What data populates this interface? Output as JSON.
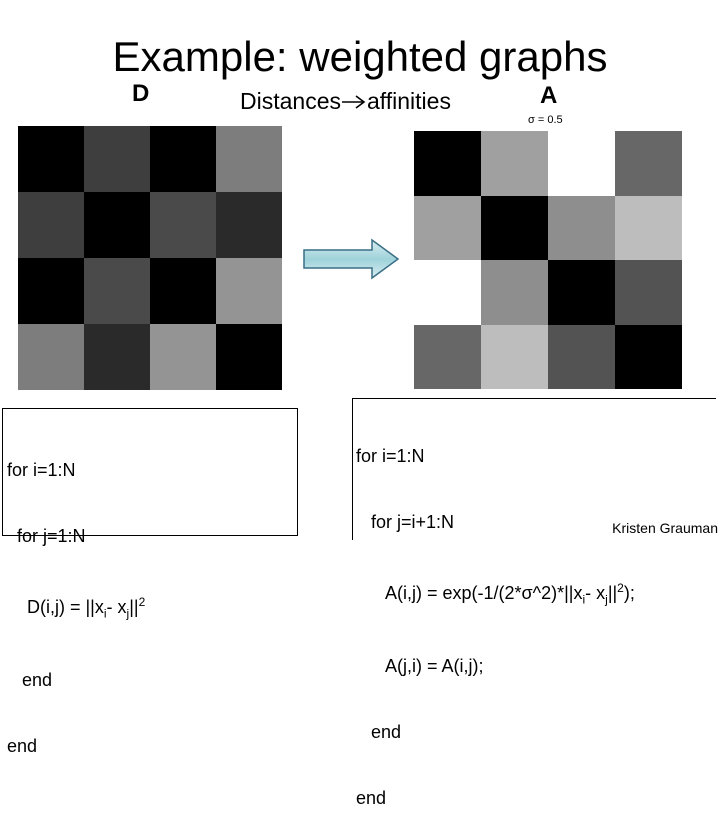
{
  "slide": {
    "title": "Example: weighted graphs",
    "label_d": "D",
    "label_a": "A",
    "subtitle_left": "Distances",
    "subtitle_right": "affinities",
    "sigma": "σ = 0.5",
    "credit": "Kristen Grauman"
  },
  "matrix_d": [
    [
      "#000000",
      "#3e3e3e",
      "#000000",
      "#7d7d7d"
    ],
    [
      "#3e3e3e",
      "#000000",
      "#4a4a4a",
      "#2a2a2a"
    ],
    [
      "#000000",
      "#4a4a4a",
      "#000000",
      "#949494"
    ],
    [
      "#7d7d7d",
      "#2a2a2a",
      "#949494",
      "#000000"
    ]
  ],
  "matrix_a": [
    [
      "#000000",
      "#a0a0a0",
      "#ffffff",
      "#676767"
    ],
    [
      "#a0a0a0",
      "#000000",
      "#8e8e8e",
      "#bdbdbd"
    ],
    [
      "#ffffff",
      "#8e8e8e",
      "#000000",
      "#535353"
    ],
    [
      "#676767",
      "#bdbdbd",
      "#535353",
      "#000000"
    ]
  ],
  "code_d": {
    "line1": "for i=1:N",
    "line2": "  for j=1:N",
    "line3a": "    D(i,j) = ||x",
    "line3b": "i",
    "line3c": "- x",
    "line3d": "j",
    "line3e": "||",
    "line3f": "2",
    "line4": "   end",
    "line5": "end"
  },
  "code_a": {
    "line1": "for i=1:N",
    "line2": "   for j=i+1:N",
    "line3a": "      A(i,j) = exp(-1/(2*σ^2)*||x",
    "line3b": "i",
    "line3c": "- x",
    "line3d": "j",
    "line3e": "||",
    "line3f": "2",
    "line3g": ");",
    "line4": "      A(j,i) = A(i,j);",
    "line5": "   end",
    "line6": "end"
  }
}
